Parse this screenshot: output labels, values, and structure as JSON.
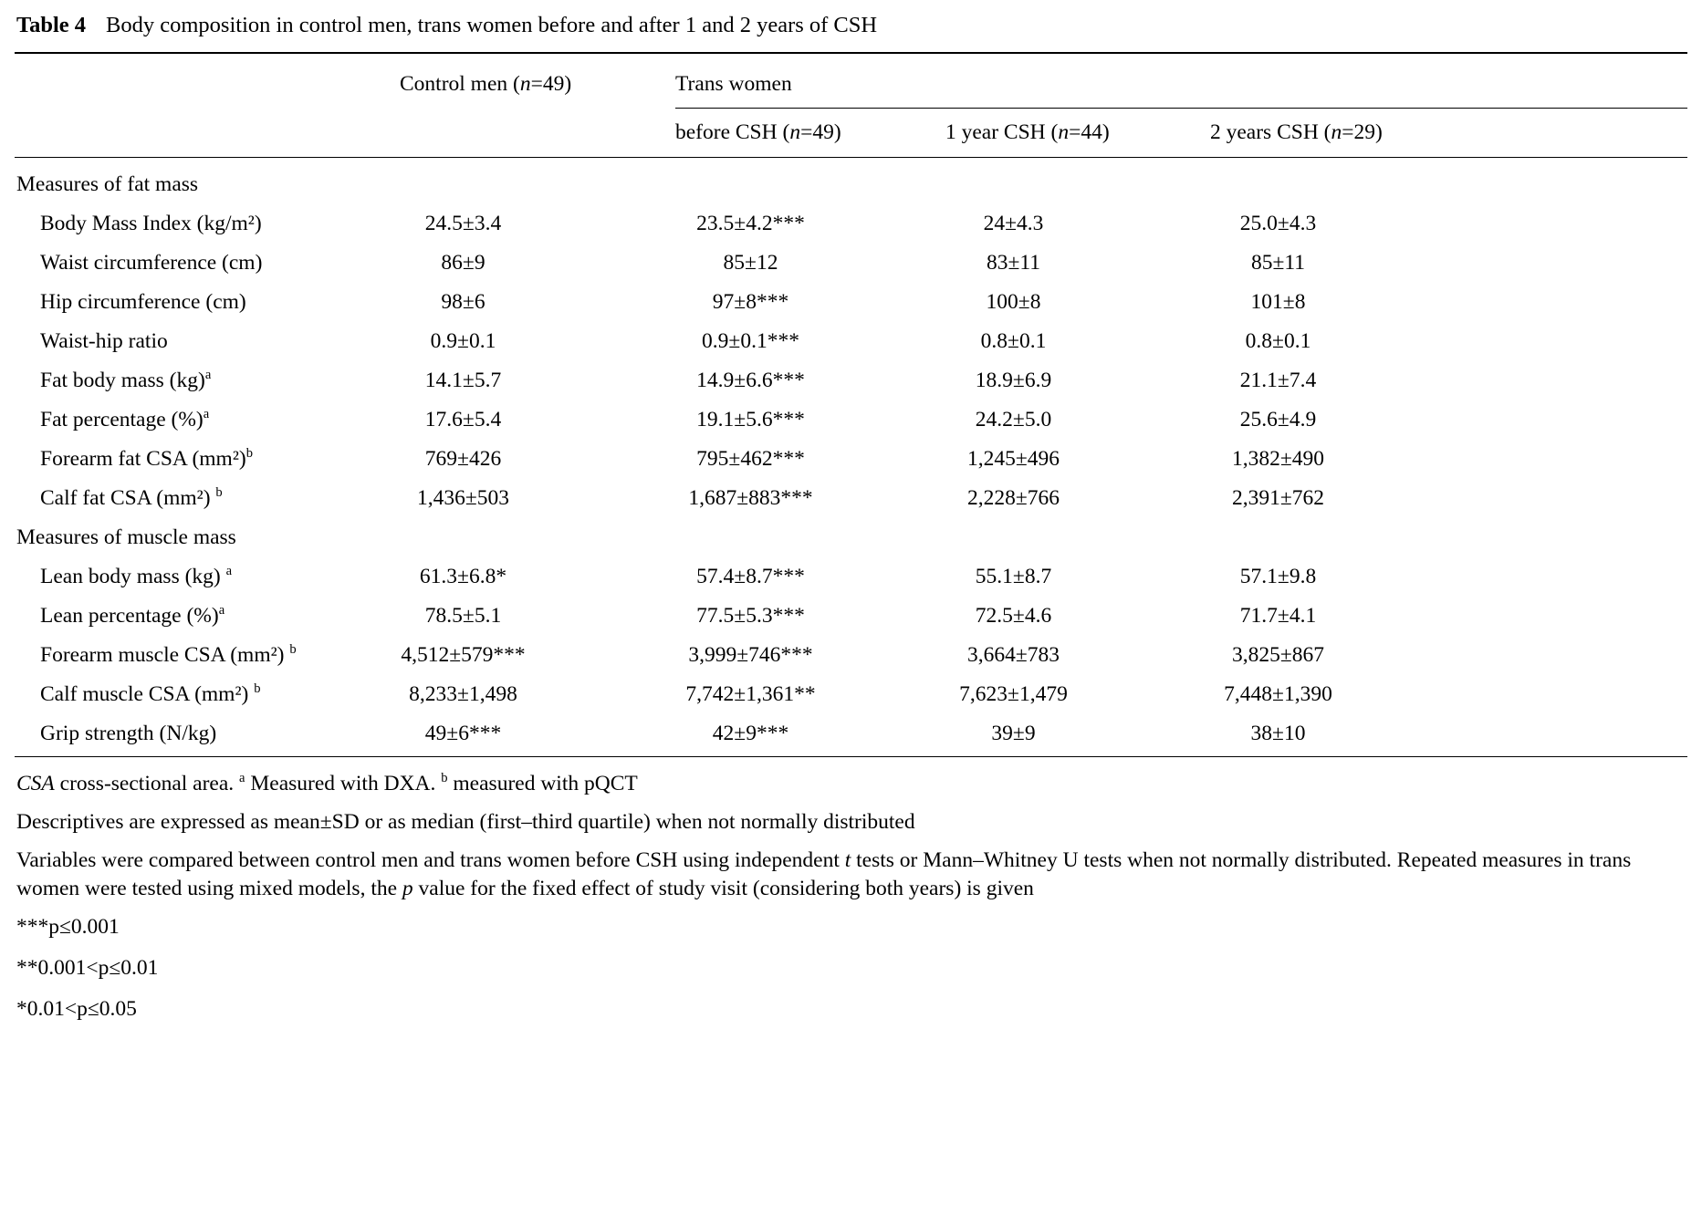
{
  "title": {
    "tag": "Table 4",
    "text": "Body composition in control men, trans women before and after 1 and 2 years of CSH"
  },
  "table": {
    "headers": {
      "control_parts": [
        {
          "t": "Control men ("
        },
        {
          "t": "n",
          "i": true
        },
        {
          "t": "=49)"
        }
      ],
      "group": "Trans women",
      "before_parts": [
        {
          "t": "before CSH ("
        },
        {
          "t": "n",
          "i": true
        },
        {
          "t": "=49)"
        }
      ],
      "year1_parts": [
        {
          "t": "1 year CSH ("
        },
        {
          "t": "n",
          "i": true
        },
        {
          "t": "=44)"
        }
      ],
      "year2_parts": [
        {
          "t": "2 years CSH ("
        },
        {
          "t": "n",
          "i": true
        },
        {
          "t": "=29)"
        }
      ]
    },
    "rows": [
      {
        "section": "Measures of fat mass"
      },
      {
        "label": "Body Mass Index (kg/m²)",
        "sup": "",
        "values": [
          "24.5±3.4",
          "23.5±4.2***",
          "24±4.3",
          "25.0±4.3"
        ]
      },
      {
        "label": "Waist circumference (cm)",
        "sup": "",
        "values": [
          "86±9",
          "85±12",
          "83±11",
          "85±11"
        ]
      },
      {
        "label": "Hip circumference (cm)",
        "sup": "",
        "values": [
          "98±6",
          "97±8***",
          "100±8",
          "101±8"
        ]
      },
      {
        "label": "Waist-hip ratio",
        "sup": "",
        "values": [
          "0.9±0.1",
          "0.9±0.1***",
          "0.8±0.1",
          "0.8±0.1"
        ]
      },
      {
        "label": "Fat body mass (kg)",
        "sup": "a",
        "values": [
          "14.1±5.7",
          "14.9±6.6***",
          "18.9±6.9",
          "21.1±7.4"
        ]
      },
      {
        "label": "Fat percentage (%)",
        "sup": "a",
        "values": [
          "17.6±5.4",
          "19.1±5.6***",
          "24.2±5.0",
          "25.6±4.9"
        ]
      },
      {
        "label": "Forearm fat CSA (mm²)",
        "sup": "b",
        "values": [
          "769±426",
          "795±462***",
          "1,245±496",
          "1,382±490"
        ]
      },
      {
        "label": "Calf fat CSA (mm²) ",
        "sup": "b",
        "values": [
          "1,436±503",
          "1,687±883***",
          "2,228±766",
          "2,391±762"
        ]
      },
      {
        "section": "Measures of muscle mass"
      },
      {
        "label": "Lean body mass (kg) ",
        "sup": "a",
        "values": [
          "61.3±6.8*",
          "57.4±8.7***",
          "55.1±8.7",
          "57.1±9.8"
        ]
      },
      {
        "label": "Lean percentage (%)",
        "sup": "a",
        "values": [
          "78.5±5.1",
          "77.5±5.3***",
          "72.5±4.6",
          "71.7±4.1"
        ]
      },
      {
        "label": "Forearm muscle CSA (mm²) ",
        "sup": "b",
        "values": [
          "4,512±579***",
          "3,999±746***",
          "3,664±783",
          "3,825±867"
        ]
      },
      {
        "label": "Calf muscle CSA (mm²) ",
        "sup": "b",
        "values": [
          "8,233±1,498",
          "7,742±1,361**",
          "7,623±1,479",
          "7,448±1,390"
        ]
      },
      {
        "label": "Grip strength (N/kg)",
        "sup": "",
        "values": [
          "49±6***",
          "42±9***",
          "39±9",
          "38±10"
        ]
      }
    ]
  },
  "footnotes": {
    "abbrev": [
      {
        "t": "CSA",
        "i": true
      },
      {
        "t": " cross-sectional area. "
      },
      {
        "t": "a",
        "sup": true
      },
      {
        "t": " Measured with DXA. "
      },
      {
        "t": "b",
        "sup": true
      },
      {
        "t": " measured with pQCT"
      }
    ],
    "descriptives": [
      {
        "t": "Descriptives are expressed as mean±SD or as median (first–third quartile) when not normally distributed"
      }
    ],
    "methods": [
      {
        "t": "Variables were compared between control men and trans women before CSH using independent "
      },
      {
        "t": "t",
        "i": true
      },
      {
        "t": " tests or Mann–Whitney U tests when not normally distributed. Repeated measures in trans women were tested using mixed models, the "
      },
      {
        "t": "p",
        "i": true
      },
      {
        "t": " value for the fixed effect of study visit (considering both years) is given"
      }
    ],
    "significance": [
      "***p≤0.001",
      "**0.001<p≤0.01",
      "*0.01<p≤0.05"
    ]
  }
}
